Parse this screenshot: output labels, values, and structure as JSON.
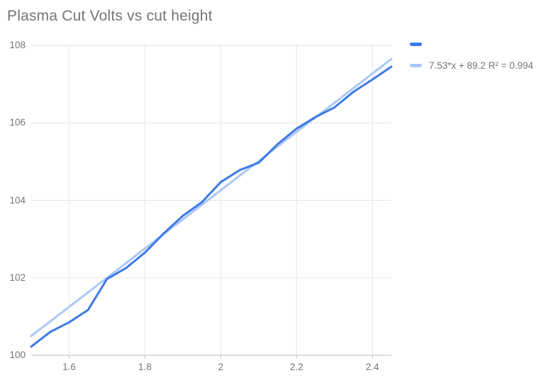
{
  "page": {
    "title": "Plasma Cut Volts vs cut height"
  },
  "legend": {
    "series_label": "",
    "trend_label": "7.53*x + 89.2 R² = 0.994"
  },
  "chart_data": {
    "type": "line",
    "title": "Plasma Cut Volts vs cut height",
    "xlabel": "",
    "ylabel": "",
    "xlim": [
      1.5,
      2.45
    ],
    "ylim": [
      100,
      108
    ],
    "grid": true,
    "legend_position": "right-top",
    "x_ticks": {
      "values": [
        1.6,
        1.8,
        2.0,
        2.2,
        2.4
      ],
      "labels": [
        "1.6",
        "1.8",
        "2",
        "2.2",
        "2.4"
      ]
    },
    "y_ticks": {
      "values": [
        100,
        102,
        104,
        106,
        108
      ],
      "labels": [
        "100",
        "102",
        "104",
        "106",
        "108"
      ]
    },
    "series": [
      {
        "legend_label": "",
        "color": "#3c79e8",
        "x": [
          1.5,
          1.55,
          1.6,
          1.65,
          1.7,
          1.75,
          1.8,
          1.85,
          1.9,
          1.95,
          2.0,
          2.05,
          2.1,
          2.15,
          2.2,
          2.25,
          2.3,
          2.35,
          2.4,
          2.45
        ],
        "y": [
          100.22,
          100.6,
          100.85,
          101.17,
          101.97,
          102.25,
          102.65,
          103.15,
          103.6,
          103.95,
          104.47,
          104.78,
          104.97,
          105.45,
          105.85,
          106.15,
          106.4,
          106.8,
          107.12,
          107.45
        ]
      }
    ],
    "trendline": {
      "label": "7.53*x + 89.2 R² = 0.994",
      "equation_slope": 7.53,
      "equation_intercept": 89.2,
      "r_squared": 0.994,
      "color": "#abc8f8"
    },
    "colors": {
      "gridline": "#e5e5e5",
      "axis_line": "#bdbdbd",
      "tick_label": "#757575",
      "title": "#757575"
    }
  }
}
